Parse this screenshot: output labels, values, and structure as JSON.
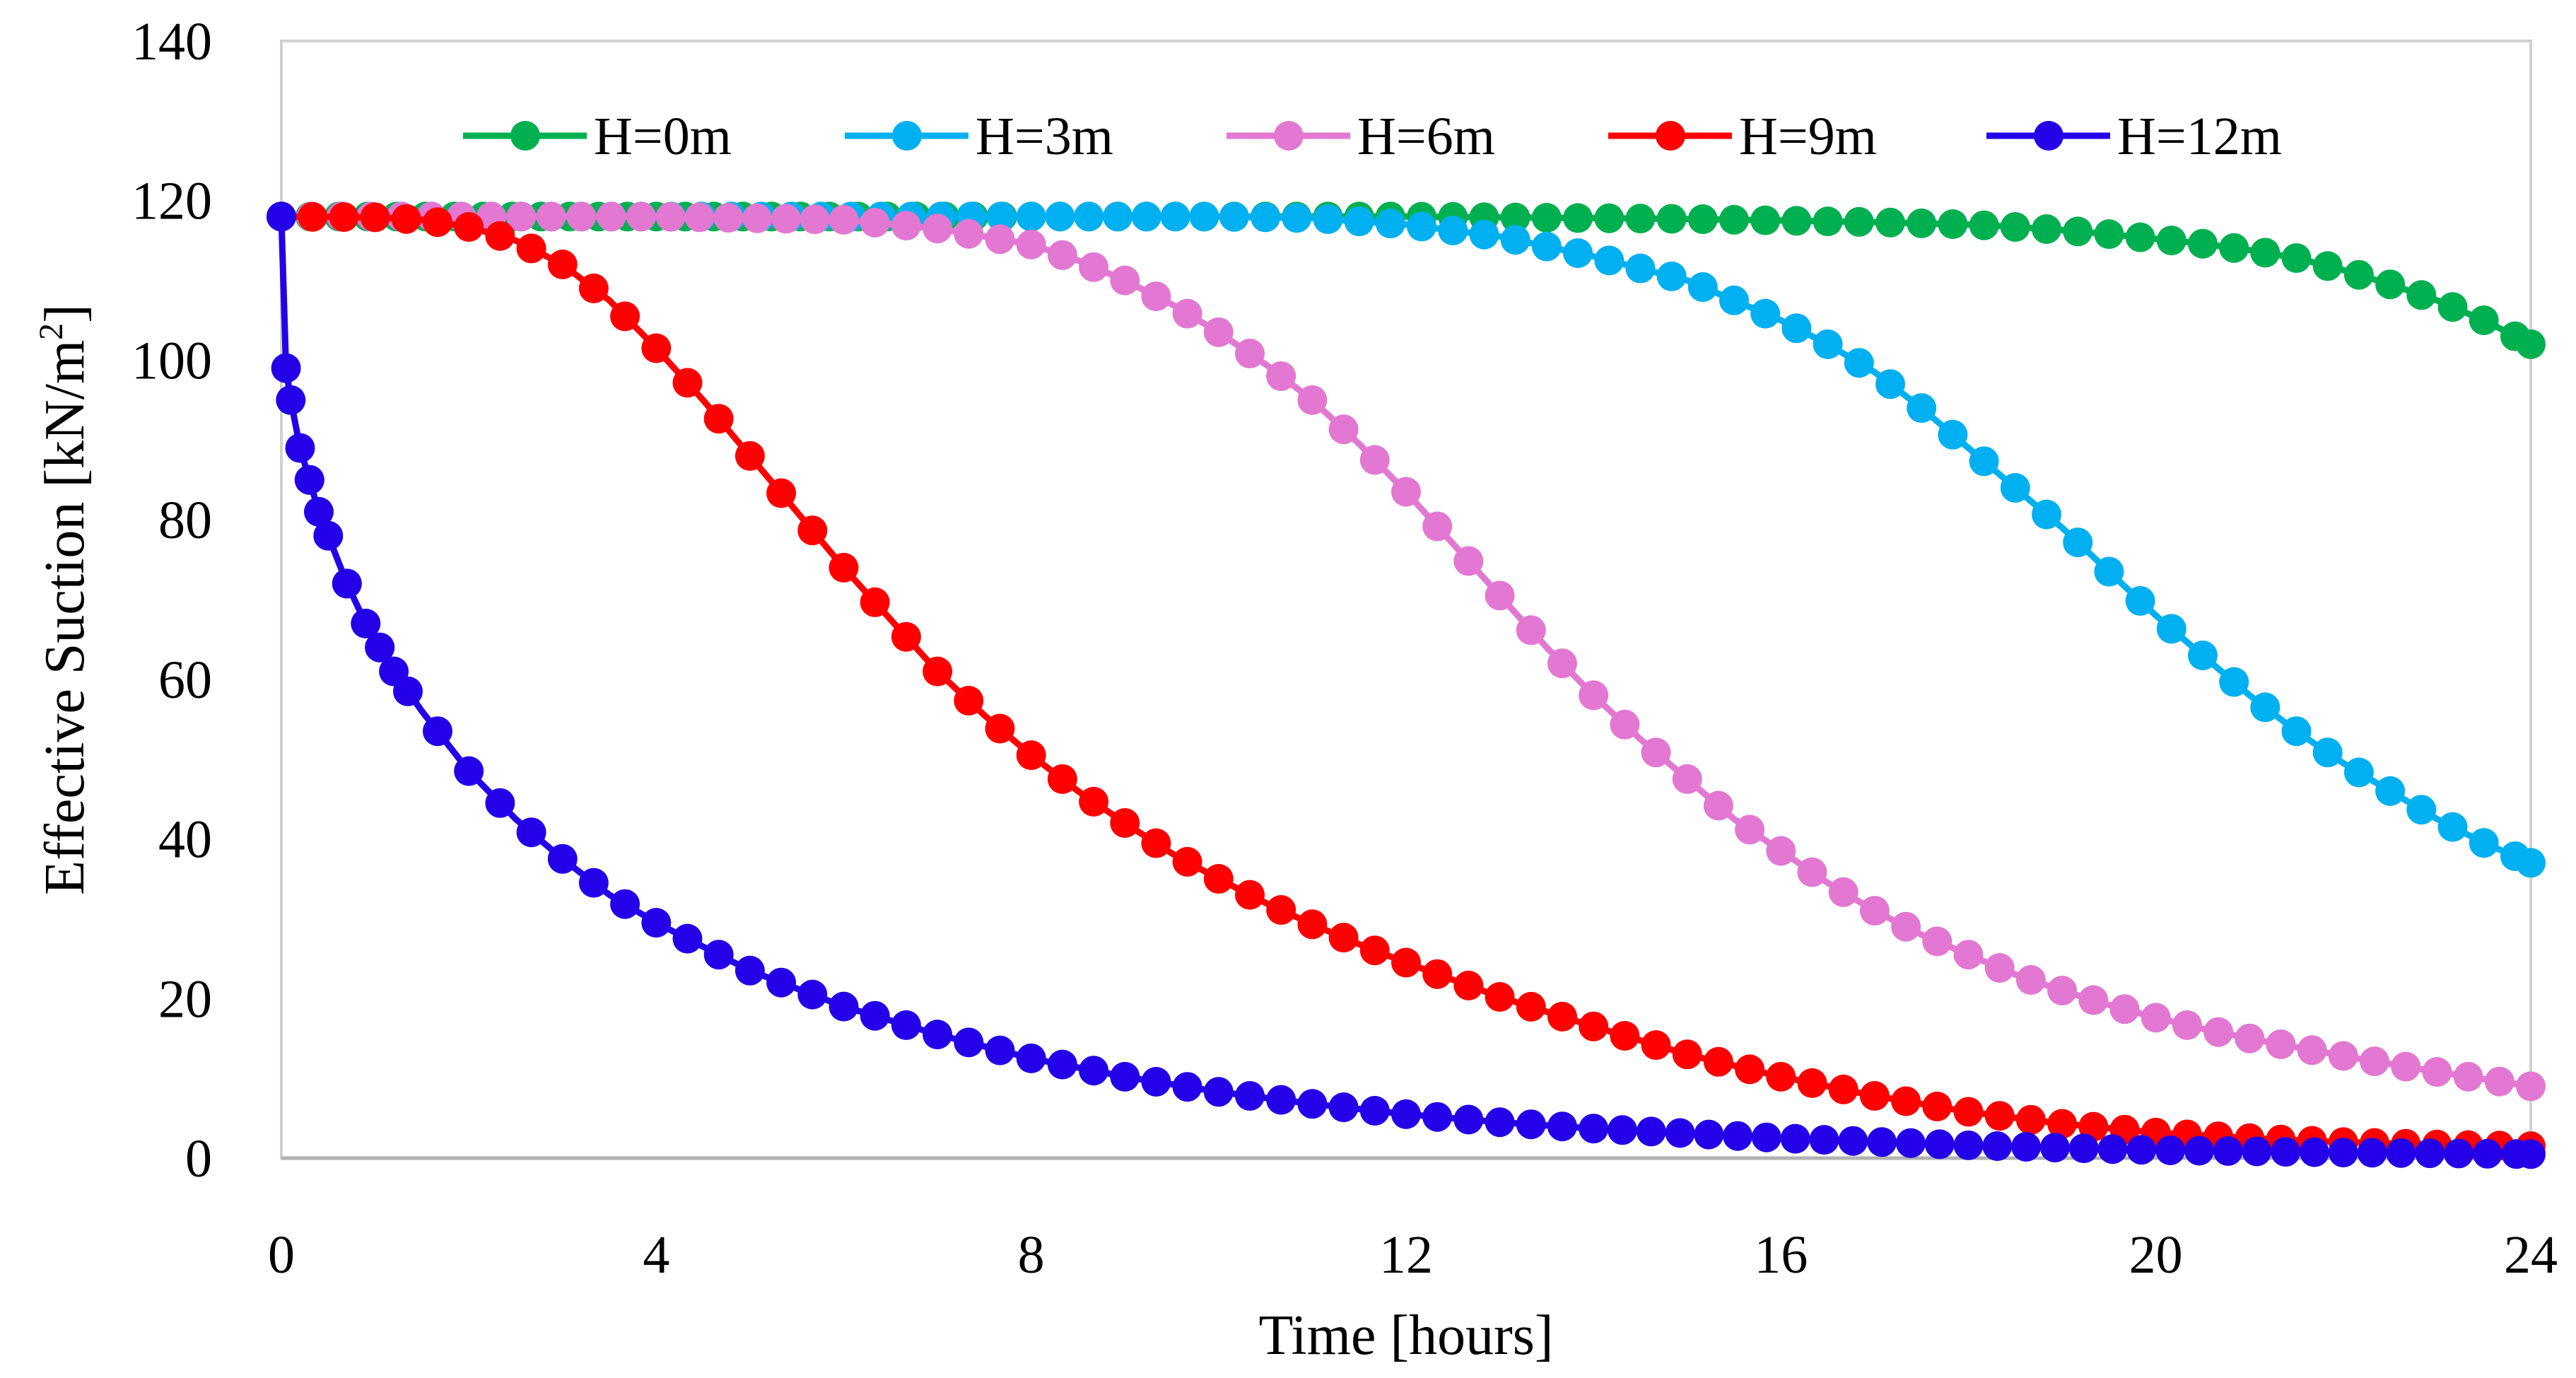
{
  "chart_data": {
    "type": "line",
    "title": "",
    "xlabel": "Time [hours]",
    "ylabel_main": "Effective Suction [kN/m",
    "ylabel_sup": "2",
    "ylabel_close": "]",
    "xlim": [
      0,
      24
    ],
    "ylim": [
      0,
      140
    ],
    "xticks": [
      0,
      4,
      8,
      12,
      16,
      20,
      24
    ],
    "yticks": [
      0,
      20,
      40,
      60,
      80,
      100,
      120,
      140
    ],
    "legend_position": "top",
    "grid": false,
    "series": [
      {
        "name": "H=0m",
        "color": "#00b050",
        "x": [
          0,
          2,
          4,
          6,
          8,
          10,
          11,
          12,
          13,
          14,
          15,
          16,
          17,
          18,
          18.5,
          19,
          19.5,
          20,
          20.5,
          21,
          21.5,
          22,
          22.5,
          23,
          23.5,
          24
        ],
        "values": [
          118,
          118,
          118,
          118,
          118,
          118,
          118,
          118,
          117.9,
          117.8,
          117.7,
          117.5,
          117.3,
          117,
          116.7,
          116.3,
          115.8,
          115.2,
          114.6,
          113.8,
          112.8,
          111.3,
          109.5,
          107.5,
          105,
          102
        ]
      },
      {
        "name": "H=3m",
        "color": "#00b0f0",
        "x": [
          0,
          4,
          8,
          10,
          11,
          12,
          13,
          14,
          15,
          16,
          16.5,
          17,
          17.5,
          18,
          18.5,
          19,
          19.5,
          20,
          20.5,
          21,
          21.5,
          22,
          22.5,
          23,
          23.5,
          24
        ],
        "values": [
          118,
          118,
          118,
          118,
          117.8,
          117,
          115.5,
          113,
          110,
          105,
          102,
          98.5,
          94,
          89,
          84,
          79,
          73.5,
          68,
          63,
          58,
          53.5,
          49.5,
          46,
          42.5,
          39.5,
          37
        ]
      },
      {
        "name": "H=6m",
        "color": "#e278d2",
        "x": [
          0,
          4,
          6,
          7,
          8,
          8.5,
          9,
          9.5,
          10,
          10.5,
          11,
          11.5,
          12,
          12.5,
          13,
          13.5,
          14,
          14.5,
          15,
          15.5,
          16,
          16.5,
          17,
          17.5,
          18,
          18.5,
          19,
          19.5,
          20,
          20.5,
          21,
          21.5,
          22,
          22.5,
          23,
          23.5,
          24
        ],
        "values": [
          118,
          118,
          117.6,
          116.5,
          114.5,
          112.5,
          110,
          107,
          103.5,
          99.5,
          95,
          89.5,
          83.5,
          77,
          70.5,
          64,
          58,
          52.5,
          47.5,
          42.5,
          38.5,
          34.5,
          31,
          28,
          25.5,
          23,
          21,
          19.2,
          17.6,
          16.2,
          15,
          13.9,
          12.8,
          11.8,
          10.8,
          9.9,
          9
        ]
      },
      {
        "name": "H=9m",
        "color": "#ff0000",
        "x": [
          0,
          1,
          1.5,
          2,
          2.5,
          3,
          3.5,
          4,
          4.5,
          5,
          5.5,
          6,
          6.5,
          7,
          7.5,
          8,
          8.5,
          9,
          9.5,
          10,
          10.5,
          11,
          11.5,
          12,
          13,
          14,
          15,
          16,
          17,
          18,
          19,
          20,
          21,
          22,
          23,
          24
        ],
        "values": [
          118,
          117.9,
          117.6,
          116.7,
          115,
          112,
          107.5,
          101.5,
          95,
          88,
          81,
          74,
          67.5,
          61,
          55.5,
          50.5,
          46,
          42,
          38.2,
          35,
          32,
          29.3,
          26.8,
          24.5,
          20.2,
          16.5,
          13,
          10.2,
          7.8,
          5.8,
          4.3,
          3.2,
          2.5,
          2,
          1.7,
          1.5
        ]
      },
      {
        "name": "H=12m",
        "color": "#2400e8",
        "x": [
          0,
          0.05,
          0.1,
          0.2,
          0.3,
          0.4,
          0.5,
          0.7,
          0.9,
          1.2,
          1.5,
          2,
          2.5,
          3,
          3.5,
          4,
          5,
          6,
          7,
          8,
          9,
          10,
          11,
          12,
          13,
          14,
          16,
          18,
          20,
          22,
          24
        ],
        "values": [
          118,
          99,
          95,
          89,
          85,
          81,
          78,
          72,
          67,
          61,
          56,
          48.5,
          42.5,
          37.5,
          33,
          29.5,
          23.5,
          19,
          15.5,
          12.5,
          10.2,
          8.3,
          6.8,
          5.5,
          4.5,
          3.7,
          2.5,
          1.6,
          1,
          0.7,
          0.5
        ]
      }
    ]
  }
}
